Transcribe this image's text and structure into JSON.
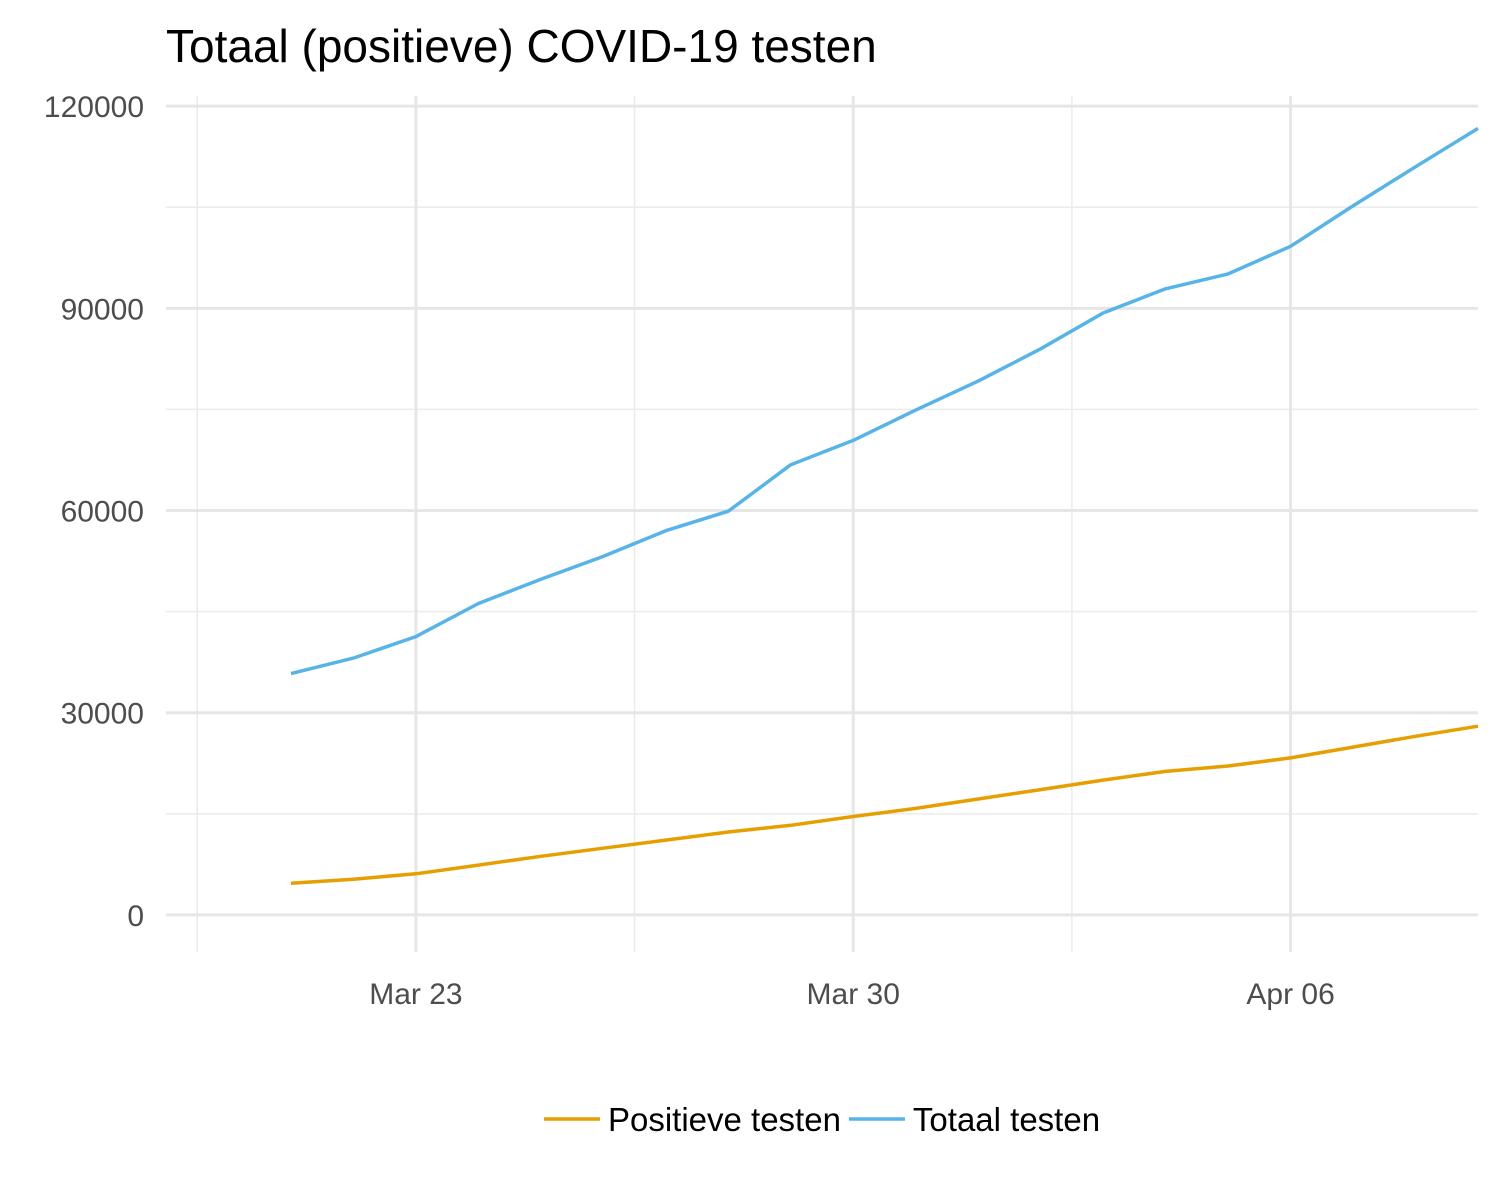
{
  "chart_data": {
    "type": "line",
    "title": "Totaal (positieve) COVID-19 testen",
    "xlabel": "",
    "ylabel": "",
    "ylim": [
      -5500,
      121500
    ],
    "xlim": [
      "2020-03-19",
      "2020-04-09"
    ],
    "grid": true,
    "legend_position": "bottom",
    "y_ticks": [
      0,
      30000,
      60000,
      90000,
      120000
    ],
    "y_tick_labels": [
      "0",
      "30000",
      "60000",
      "90000",
      "120000"
    ],
    "x_ticks": [
      "2020-03-23",
      "2020-03-30",
      "2020-04-06"
    ],
    "x_tick_labels": [
      "Mar 23",
      "Mar 30",
      "Apr 06"
    ],
    "x": [
      "2020-03-21",
      "2020-03-22",
      "2020-03-23",
      "2020-03-24",
      "2020-03-25",
      "2020-03-26",
      "2020-03-27",
      "2020-03-28",
      "2020-03-29",
      "2020-03-30",
      "2020-03-31",
      "2020-04-01",
      "2020-04-02",
      "2020-04-03",
      "2020-04-04",
      "2020-04-05",
      "2020-04-06",
      "2020-04-07",
      "2020-04-08",
      "2020-04-09"
    ],
    "series": [
      {
        "name": "Positieve testen",
        "color": "#E69F00",
        "values": [
          4700,
          5300,
          6100,
          7400,
          8700,
          9900,
          11100,
          12300,
          13300,
          14600,
          15800,
          17200,
          18600,
          20000,
          21300,
          22100,
          23300,
          24900,
          26500,
          28000
        ]
      },
      {
        "name": "Totaal testen",
        "color": "#56B4E9",
        "values": [
          35800,
          38100,
          41300,
          46200,
          49800,
          53200,
          57000,
          59900,
          66800,
          70400,
          74900,
          79200,
          84000,
          89300,
          92900,
          95100,
          99200,
          105200,
          111000,
          116700
        ]
      }
    ]
  }
}
